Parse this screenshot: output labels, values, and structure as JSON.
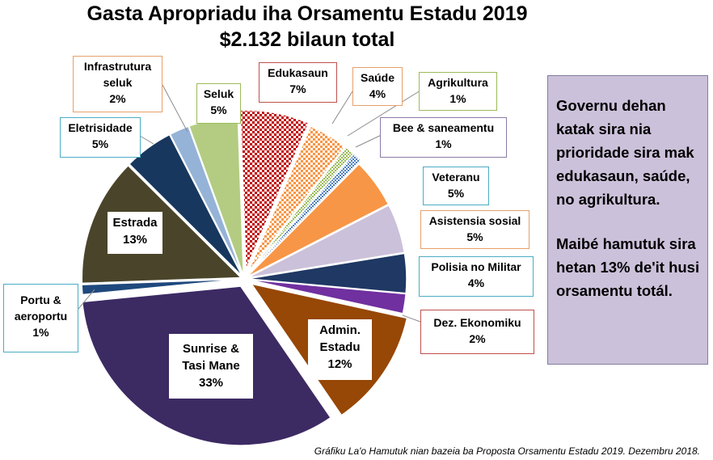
{
  "chart_data": {
    "type": "pie",
    "title": "Gasta Apropriadu iha Orsamentu Estadu 2019",
    "subtitle": "$2.132 bilaun total",
    "slices": [
      {
        "label": "Edukasaun",
        "value": 7,
        "value_label": "7%",
        "color": "#c00000",
        "pattern": "checker"
      },
      {
        "label": "Saúde",
        "value": 4,
        "value_label": "4%",
        "color": "#f79646",
        "pattern": "checker"
      },
      {
        "label": "Agrikultura",
        "value": 1,
        "value_label": "1%",
        "color": "#9bbb59",
        "pattern": "checker"
      },
      {
        "label": "Bee & saneamentu",
        "value": 1,
        "value_label": "1%",
        "color": "#4f81bd",
        "pattern": "checker"
      },
      {
        "label": "Veteranu",
        "value": 5,
        "value_label": "5%",
        "color": "#f79646"
      },
      {
        "label": "Asistensia sosial",
        "value": 5,
        "value_label": "5%",
        "color": "#ccc1da"
      },
      {
        "label": "Polisia no Militar",
        "value": 4,
        "value_label": "4%",
        "color": "#1f3864"
      },
      {
        "label": "Dez. Ekonomiku",
        "value": 2,
        "value_label": "2%",
        "color": "#7030a0"
      },
      {
        "label": "Admin. Estadu",
        "value": 12,
        "value_label": "12%",
        "color": "#974706"
      },
      {
        "label": "Sunrise & Tasi Mane",
        "value": 33,
        "value_label": "33%",
        "color": "#3c2a63"
      },
      {
        "label": "Portu & aeroportu",
        "value": 1,
        "value_label": "1%",
        "color": "#1f497d"
      },
      {
        "label": "Estrada",
        "value": 13,
        "value_label": "13%",
        "color": "#4a452a"
      },
      {
        "label": "Eletrisidade",
        "value": 5,
        "value_label": "5%",
        "color": "#17375e"
      },
      {
        "label": "Infrastrutura seluk",
        "value": 2,
        "value_label": "2%",
        "color": "#95b3d7"
      },
      {
        "label": "Seluk",
        "value": 5,
        "value_label": "5%",
        "color": "#b3cc82"
      }
    ]
  },
  "labels": {
    "edukasaun": {
      "name": "Edukasaun",
      "pct": "7%"
    },
    "saude": {
      "name": "Saúde",
      "pct": "4%"
    },
    "agrikultura": {
      "name": "Agrikultura",
      "pct": "1%"
    },
    "bee": {
      "name": "Bee & saneamentu",
      "pct": "1%"
    },
    "veteranu": {
      "name": "Veteranu",
      "pct": "5%"
    },
    "asistensia": {
      "name": "Asistensia sosial",
      "pct": "5%"
    },
    "polisia": {
      "name": "Polisia no Militar",
      "pct": "4%"
    },
    "dez": {
      "name": "Dez. Ekonomiku",
      "pct": "2%"
    },
    "admin": {
      "line1": "Admin.",
      "line2": "Estadu",
      "pct": "12%"
    },
    "sunrise": {
      "line1": "Sunrise &",
      "line2": "Tasi Mane",
      "pct": "33%"
    },
    "portu": {
      "line1": "Portu &",
      "line2": "aeroportu",
      "pct": "1%"
    },
    "estrada": {
      "name": "Estrada",
      "pct": "13%"
    },
    "eletrisidade": {
      "name": "Eletrisidade",
      "pct": "5%"
    },
    "infra": {
      "line1": "Infrastrutura",
      "line2": "seluk",
      "pct": "2%"
    },
    "seluk": {
      "name": "Seluk",
      "pct": "5%"
    }
  },
  "note": {
    "paragraph1": "Governu dehan katak sira nia prioridade sira mak edukasaun, saúde, no agrikultura.",
    "paragraph2": "Maibé hamutuk sira hetan 13% de'it husi orsamentu totál."
  },
  "source": "Gráfiku La'o Hamutuk nian bazeia ba Proposta Orsamentu Estadu 2019.  Dezembru 2018."
}
